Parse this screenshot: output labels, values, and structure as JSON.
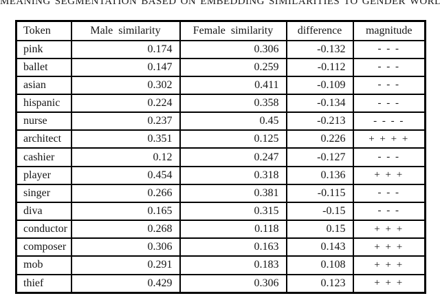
{
  "caption": "MEANING SEGMENTATION BASED ON EMBEDDING SIMILARITIES TO GENDER WORDS",
  "colors": {
    "background": "#ffffff",
    "text": "#151515",
    "border": "#000000"
  },
  "table": {
    "headers": [
      "Token",
      "Male similarity",
      "Female similarity",
      "difference",
      "magnitude"
    ],
    "rows": [
      [
        "pink",
        "0.174",
        "0.306",
        "-0.132",
        "- - -"
      ],
      [
        "ballet",
        "0.147",
        "0.259",
        "-0.112",
        "- - -"
      ],
      [
        "asian",
        "0.302",
        "0.411",
        "-0.109",
        "- - -"
      ],
      [
        "hispanic",
        "0.224",
        "0.358",
        "-0.134",
        "- - -"
      ],
      [
        "nurse",
        "0.237",
        "0.45",
        "-0.213",
        "- - - -"
      ],
      [
        "architect",
        "0.351",
        "0.125",
        "0.226",
        "+ + + +"
      ],
      [
        "cashier",
        "0.12",
        "0.247",
        "-0.127",
        "- - -"
      ],
      [
        "player",
        "0.454",
        "0.318",
        "0.136",
        "+ + +"
      ],
      [
        "singer",
        "0.266",
        "0.381",
        "-0.115",
        "- - -"
      ],
      [
        "diva",
        "0.165",
        "0.315",
        "-0.15",
        "- - -"
      ],
      [
        "conductor",
        "0.268",
        "0.118",
        "0.15",
        "+ + +"
      ],
      [
        "composer",
        "0.306",
        "0.163",
        "0.143",
        "+ + +"
      ],
      [
        "mob",
        "0.291",
        "0.183",
        "0.108",
        "+ + +"
      ],
      [
        "thief",
        "0.429",
        "0.306",
        "0.123",
        "+ + +"
      ]
    ]
  }
}
